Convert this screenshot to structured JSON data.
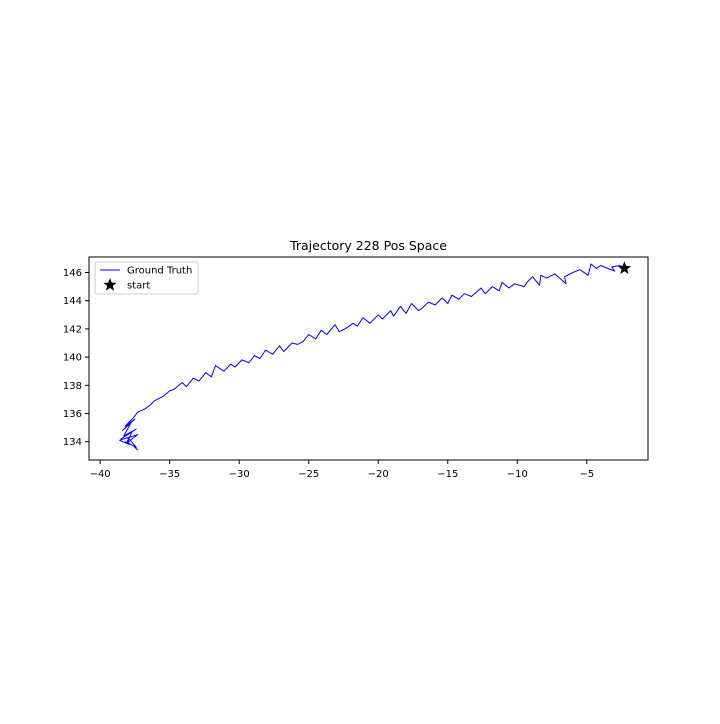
{
  "chart_data": {
    "type": "line",
    "title": "Trajectory 228 Pos Space",
    "xlabel": "",
    "ylabel": "",
    "xlim": [
      -40.8,
      -0.6
    ],
    "ylim": [
      132.7,
      147.1
    ],
    "xticks": [
      -40,
      -35,
      -30,
      -25,
      -20,
      -15,
      -10,
      -5
    ],
    "yticks": [
      134,
      136,
      138,
      140,
      142,
      144,
      146
    ],
    "grid": false,
    "legend_position": "upper-left",
    "series": [
      {
        "name": "Ground Truth",
        "color": "#0000ff",
        "x": [
          -2.3,
          -2.6,
          -3.2,
          -3.0,
          -4.0,
          -4.3,
          -4.7,
          -4.9,
          -5.5,
          -6.0,
          -6.6,
          -6.5,
          -7.3,
          -7.9,
          -8.3,
          -8.4,
          -8.9,
          -9.3,
          -9.5,
          -10.2,
          -10.6,
          -11.1,
          -11.3,
          -11.8,
          -12.3,
          -12.6,
          -13.3,
          -13.8,
          -14.2,
          -14.7,
          -15.0,
          -15.4,
          -15.9,
          -16.4,
          -16.8,
          -17.1,
          -17.6,
          -18.0,
          -18.4,
          -18.9,
          -19.1,
          -19.7,
          -20.0,
          -20.6,
          -21.1,
          -21.5,
          -21.8,
          -22.4,
          -22.8,
          -23.1,
          -23.7,
          -24.1,
          -24.5,
          -25.0,
          -25.4,
          -25.8,
          -26.2,
          -26.8,
          -27.1,
          -27.6,
          -28.1,
          -28.5,
          -28.9,
          -29.3,
          -29.8,
          -30.3,
          -30.6,
          -31.1,
          -31.7,
          -32.0,
          -32.4,
          -32.9,
          -33.3,
          -33.8,
          -34.1,
          -34.7,
          -35.0,
          -35.5,
          -36.1,
          -36.4,
          -36.8,
          -37.3,
          -37.6,
          -37.9,
          -38.2,
          -37.5,
          -38.4,
          -37.8,
          -38.3,
          -37.4,
          -38.5,
          -37.7,
          -38.1,
          -37.3,
          -38.6,
          -37.9,
          -38.0,
          -37.4,
          -38.2,
          -37.6,
          -37.3
        ],
        "y": [
          146.3,
          146.5,
          146.4,
          146.1,
          146.5,
          146.3,
          146.6,
          145.8,
          146.2,
          146.0,
          145.7,
          145.2,
          145.9,
          145.6,
          145.8,
          145.1,
          145.7,
          145.3,
          145.0,
          145.2,
          144.9,
          145.3,
          144.7,
          145.0,
          144.5,
          144.9,
          144.3,
          144.5,
          144.1,
          144.4,
          143.8,
          144.2,
          143.7,
          143.9,
          143.5,
          143.3,
          143.8,
          143.1,
          143.6,
          142.9,
          143.3,
          142.7,
          143.0,
          142.4,
          142.8,
          142.2,
          142.4,
          142.0,
          141.8,
          142.3,
          141.6,
          141.9,
          141.3,
          141.6,
          141.1,
          140.9,
          141.0,
          140.4,
          140.8,
          140.2,
          140.5,
          139.9,
          140.1,
          139.6,
          139.8,
          139.3,
          139.5,
          139.0,
          139.4,
          138.6,
          138.9,
          138.3,
          138.5,
          137.9,
          138.2,
          137.7,
          137.6,
          137.2,
          136.9,
          136.6,
          136.3,
          136.1,
          135.7,
          135.4,
          135.1,
          135.6,
          134.8,
          135.3,
          134.4,
          134.9,
          134.2,
          134.7,
          133.9,
          134.5,
          134.1,
          133.8,
          134.3,
          133.6,
          134.0,
          133.7,
          133.4
        ]
      }
    ],
    "markers": [
      {
        "name": "start",
        "x": -2.3,
        "y": 146.3,
        "color": "#000000",
        "symbol": "star"
      }
    ]
  }
}
